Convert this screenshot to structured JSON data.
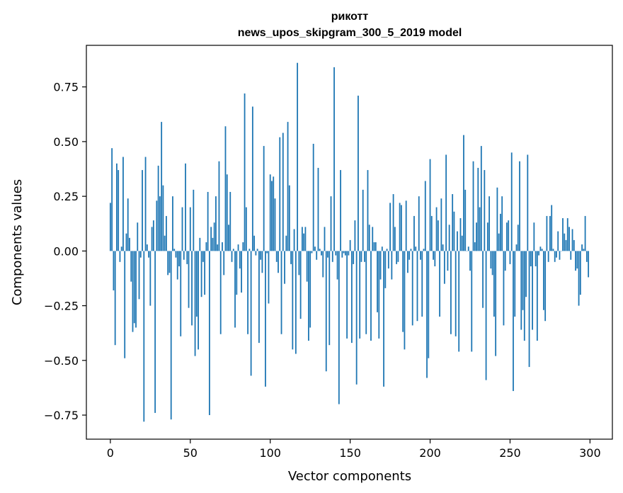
{
  "chart_data": {
    "type": "bar",
    "title_line1": "рикотт",
    "title_line2": "news_upos_skipgram_300_5_2019 model",
    "xlabel": "Vector components",
    "ylabel": "Components values",
    "xlim": [
      -15,
      314
    ],
    "ylim": [
      -0.86,
      0.94
    ],
    "x_ticks": [
      0,
      50,
      100,
      150,
      200,
      250,
      300
    ],
    "x_tick_labels": [
      "0",
      "50",
      "100",
      "150",
      "200",
      "250",
      "300"
    ],
    "y_ticks": [
      -0.75,
      -0.5,
      -0.25,
      0.0,
      0.25,
      0.5,
      0.75
    ],
    "y_tick_labels": [
      "−0.75",
      "−0.50",
      "−0.25",
      "0.00",
      "0.25",
      "0.50",
      "0.75"
    ],
    "bar_color": "#1f77b4",
    "values": [
      0.22,
      0.47,
      -0.18,
      -0.43,
      0.4,
      0.37,
      -0.05,
      0.02,
      0.43,
      -0.49,
      0.08,
      0.24,
      0.06,
      -0.14,
      -0.37,
      -0.33,
      -0.35,
      0.13,
      -0.22,
      -0.03,
      0.37,
      -0.78,
      0.43,
      0.03,
      -0.03,
      -0.25,
      0.11,
      0.14,
      -0.74,
      0.23,
      0.39,
      0.25,
      0.59,
      0.3,
      0.07,
      0.16,
      -0.11,
      -0.1,
      -0.77,
      0.25,
      0.01,
      -0.03,
      -0.13,
      -0.07,
      -0.39,
      0.2,
      -0.04,
      0.4,
      -0.06,
      -0.26,
      0.2,
      -0.34,
      0.28,
      -0.48,
      -0.3,
      -0.45,
      0.06,
      -0.21,
      -0.05,
      -0.2,
      0.04,
      0.27,
      -0.75,
      0.11,
      0.06,
      0.13,
      0.25,
      0.03,
      0.41,
      -0.38,
      0.04,
      -0.11,
      0.57,
      0.35,
      0.12,
      0.27,
      -0.05,
      0.01,
      -0.35,
      -0.2,
      0.03,
      -0.08,
      -0.19,
      0.04,
      0.72,
      0.2,
      -0.38,
      0.01,
      -0.57,
      0.66,
      0.07,
      -0.02,
      0.01,
      -0.42,
      -0.04,
      -0.1,
      0.48,
      -0.62,
      -0.01,
      -0.24,
      0.35,
      0.32,
      0.34,
      0.24,
      -0.05,
      -0.1,
      0.52,
      -0.38,
      0.54,
      -0.15,
      0.07,
      0.59,
      0.3,
      -0.06,
      -0.45,
      0.1,
      -0.47,
      0.86,
      -0.11,
      -0.31,
      0.11,
      0.08,
      0.11,
      -0.14,
      -0.41,
      -0.35,
      -0.01,
      0.49,
      0.02,
      -0.04,
      0.38,
      0.01,
      -0.02,
      -0.12,
      0.11,
      -0.55,
      -0.03,
      -0.43,
      0.25,
      -0.05,
      0.84,
      -0.02,
      -0.13,
      -0.7,
      0.37,
      -0.03,
      -0.01,
      -0.02,
      -0.4,
      -0.02,
      0.05,
      -0.42,
      -0.06,
      0.14,
      -0.61,
      0.71,
      -0.4,
      -0.05,
      0.28,
      -0.05,
      -0.38,
      0.37,
      0.12,
      -0.41,
      0.11,
      0.04,
      0.04,
      -0.28,
      -0.4,
      -0.13,
      0.02,
      -0.62,
      -0.17,
      0.01,
      -0.08,
      0.22,
      -0.13,
      0.26,
      0.11,
      -0.06,
      -0.05,
      0.22,
      0.21,
      -0.37,
      -0.45,
      0.23,
      -0.1,
      -0.04,
      0.01,
      -0.34,
      0.16,
      0.02,
      -0.32,
      0.25,
      -0.04,
      -0.3,
      0.01,
      0.32,
      -0.58,
      -0.49,
      0.42,
      0.16,
      -0.04,
      -0.07,
      0.2,
      0.14,
      -0.3,
      0.24,
      0.03,
      -0.15,
      0.44,
      -0.09,
      0.12,
      -0.38,
      0.26,
      0.18,
      -0.39,
      0.09,
      -0.46,
      0.15,
      0.07,
      0.53,
      0.28,
      0.0,
      0.02,
      -0.09,
      -0.46,
      0.41,
      0.04,
      0.13,
      0.38,
      0.2,
      0.48,
      -0.26,
      0.37,
      -0.59,
      0.13,
      0.25,
      -0.08,
      -0.11,
      -0.3,
      -0.48,
      0.29,
      0.08,
      0.17,
      0.25,
      -0.34,
      -0.09,
      0.13,
      0.14,
      -0.06,
      0.45,
      -0.64,
      -0.3,
      0.03,
      0.12,
      0.41,
      -0.36,
      -0.27,
      -0.41,
      -0.21,
      0.44,
      -0.53,
      -0.07,
      -0.36,
      0.13,
      -0.07,
      -0.41,
      -0.02,
      0.02,
      0.01,
      -0.27,
      -0.32,
      0.16,
      -0.05,
      0.16,
      0.21,
      0.01,
      -0.05,
      -0.03,
      0.09,
      -0.04,
      0.0,
      0.15,
      0.08,
      0.05,
      0.15,
      0.11,
      -0.04,
      0.1,
      0.05,
      -0.09,
      -0.08,
      -0.25,
      -0.2,
      0.03,
      0.01,
      0.16,
      -0.05,
      -0.12
    ]
  }
}
